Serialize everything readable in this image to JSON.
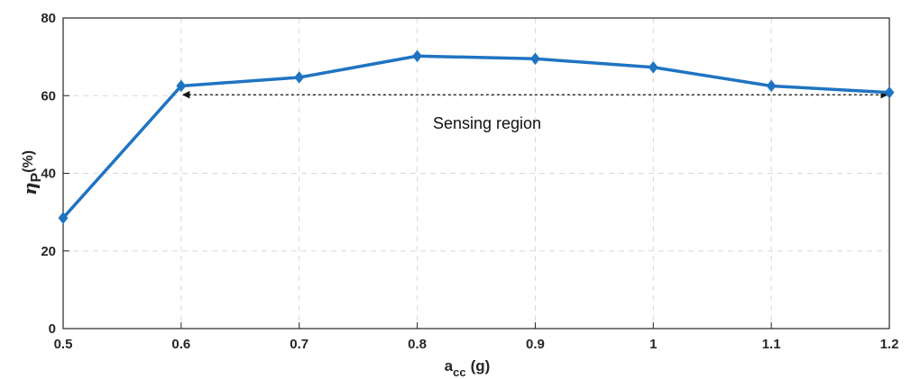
{
  "chart_data": {
    "type": "line",
    "x": [
      0.5,
      0.6,
      0.7,
      0.8,
      0.9,
      1.0,
      1.1,
      1.2
    ],
    "series": [
      {
        "values": [
          28.5,
          62.5,
          64.7,
          70.2,
          69.5,
          67.3,
          62.5,
          60.8
        ]
      }
    ],
    "x_ticks": [
      "0.5",
      "0.6",
      "0.7",
      "0.8",
      "0.9",
      "1",
      "1.1",
      "1.2"
    ],
    "y_ticks": [
      "0",
      "20",
      "40",
      "60",
      "80"
    ],
    "xlim": [
      0.5,
      1.2
    ],
    "ylim": [
      0,
      80
    ],
    "ylabel": {
      "symbol": "η",
      "subscript": "P",
      "unit": "(%)"
    },
    "xlabel": {
      "base": "a",
      "subscript": "cc",
      "unit": "(g)"
    },
    "annotation": {
      "text": "Sensing region",
      "x_from": 0.6,
      "x_to": 1.2,
      "y": 60,
      "style": "double-headed dashed arrow"
    },
    "grid": true,
    "marker": "diamond",
    "line_color": "#1f74c2"
  }
}
